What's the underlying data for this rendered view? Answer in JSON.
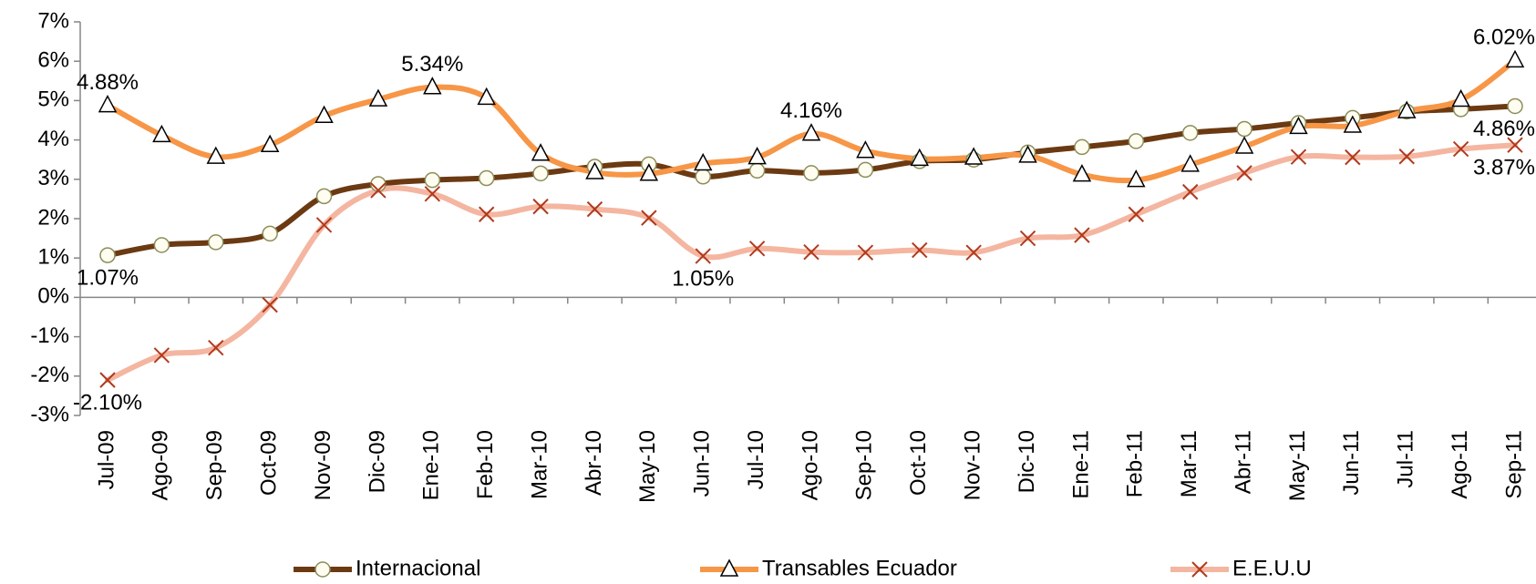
{
  "chart_data": {
    "type": "line",
    "categories": [
      "Jul-09",
      "Ago-09",
      "Sep-09",
      "Oct-09",
      "Nov-09",
      "Dic-09",
      "Ene-10",
      "Feb-10",
      "Mar-10",
      "Abr-10",
      "May-10",
      "Jun-10",
      "Jul-10",
      "Ago-10",
      "Sep-10",
      "Oct-10",
      "Nov-10",
      "Dic-10",
      "Ene-11",
      "Feb-11",
      "Mar-11",
      "Abr-11",
      "May-11",
      "Jun-11",
      "Jul-11",
      "Ago-11",
      "Sep-11"
    ],
    "series": [
      {
        "name": "Internacional",
        "color": "#6b3a12",
        "marker": "circle",
        "marker_color": "#8c8c5a",
        "values": [
          1.07,
          1.33,
          1.4,
          1.62,
          2.57,
          2.88,
          2.98,
          3.03,
          3.15,
          3.32,
          3.38,
          3.07,
          3.22,
          3.16,
          3.24,
          3.46,
          3.5,
          3.68,
          3.82,
          3.97,
          4.18,
          4.28,
          4.43,
          4.56,
          4.72,
          4.78,
          4.86
        ],
        "value_labels": [
          "1.07%",
          null,
          null,
          null,
          null,
          null,
          null,
          null,
          null,
          null,
          null,
          null,
          null,
          null,
          null,
          null,
          null,
          null,
          null,
          null,
          null,
          null,
          null,
          null,
          null,
          null,
          "4.86%"
        ]
      },
      {
        "name": "Transables Ecuador",
        "color": "#f79646",
        "marker": "triangle",
        "marker_color": "#000000",
        "values": [
          4.88,
          4.12,
          3.57,
          3.87,
          4.61,
          5.03,
          5.34,
          5.07,
          3.65,
          3.18,
          3.14,
          3.4,
          3.56,
          4.16,
          3.72,
          3.52,
          3.55,
          3.6,
          3.12,
          2.98,
          3.37,
          3.83,
          4.33,
          4.36,
          4.73,
          5.02,
          6.02
        ],
        "value_labels": [
          "4.88%",
          null,
          null,
          null,
          null,
          null,
          "5.34%",
          null,
          null,
          null,
          null,
          null,
          null,
          "4.16%",
          null,
          null,
          null,
          null,
          null,
          null,
          null,
          null,
          null,
          null,
          null,
          null,
          "6.02%"
        ]
      },
      {
        "name": "E.E.U.U",
        "color": "#f4b6a0",
        "marker": "x",
        "marker_color": "#b03a1e",
        "values": [
          -2.1,
          -1.47,
          -1.28,
          -0.19,
          1.84,
          2.72,
          2.63,
          2.11,
          2.31,
          2.24,
          2.02,
          1.05,
          1.24,
          1.15,
          1.14,
          1.2,
          1.14,
          1.5,
          1.58,
          2.11,
          2.68,
          3.16,
          3.57,
          3.56,
          3.58,
          3.77,
          3.87
        ],
        "value_labels": [
          "-2.10%",
          null,
          null,
          null,
          null,
          null,
          null,
          null,
          null,
          null,
          null,
          "1.05%",
          null,
          null,
          null,
          null,
          null,
          null,
          null,
          null,
          null,
          null,
          null,
          null,
          null,
          null,
          "3.87%"
        ]
      }
    ],
    "ylim": [
      -3,
      7
    ],
    "yticks": [
      {
        "value": -3,
        "label": "-3%"
      },
      {
        "value": -2,
        "label": "-2%"
      },
      {
        "value": -1,
        "label": "-1%"
      },
      {
        "value": 0,
        "label": "0%"
      },
      {
        "value": 1,
        "label": "1%"
      },
      {
        "value": 2,
        "label": "2%"
      },
      {
        "value": 3,
        "label": "3%"
      },
      {
        "value": 4,
        "label": "4%"
      },
      {
        "value": 5,
        "label": "5%"
      },
      {
        "value": 6,
        "label": "6%"
      },
      {
        "value": 7,
        "label": "7%"
      }
    ],
    "legend": "bottom"
  }
}
